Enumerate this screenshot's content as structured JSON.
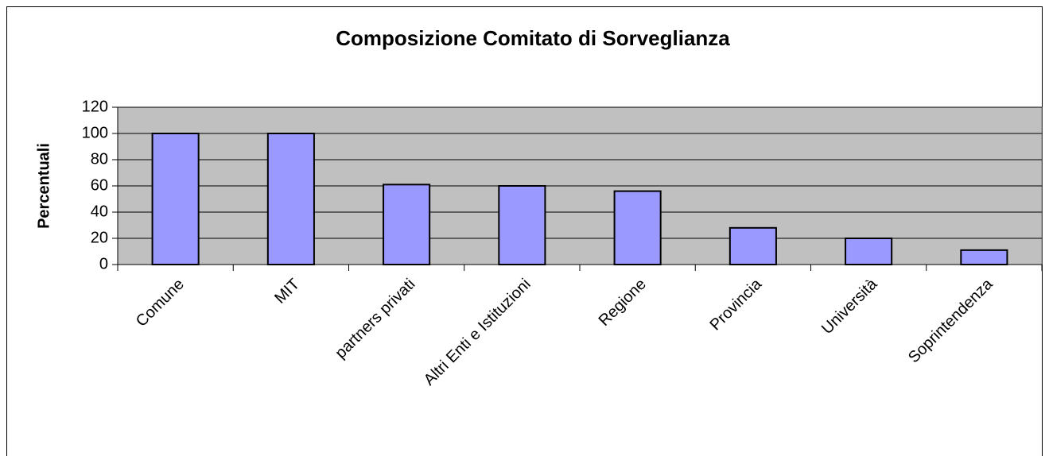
{
  "chart_data": {
    "type": "bar",
    "title": "Composizione Comitato di Sorveglianza",
    "y_label": "Percentuali",
    "categories": [
      "Comune",
      "MIT",
      "partners privati",
      "Altri Enti e Istituzioni",
      "Regione",
      "Provincia",
      "Università",
      "Soprintendenza"
    ],
    "values": [
      100,
      100,
      61,
      60,
      56,
      28,
      20,
      11
    ],
    "color": "#9999ff",
    "ylim": [
      0,
      120
    ],
    "yticks": [
      0,
      20,
      40,
      60,
      80,
      100,
      120
    ],
    "grid": true
  }
}
